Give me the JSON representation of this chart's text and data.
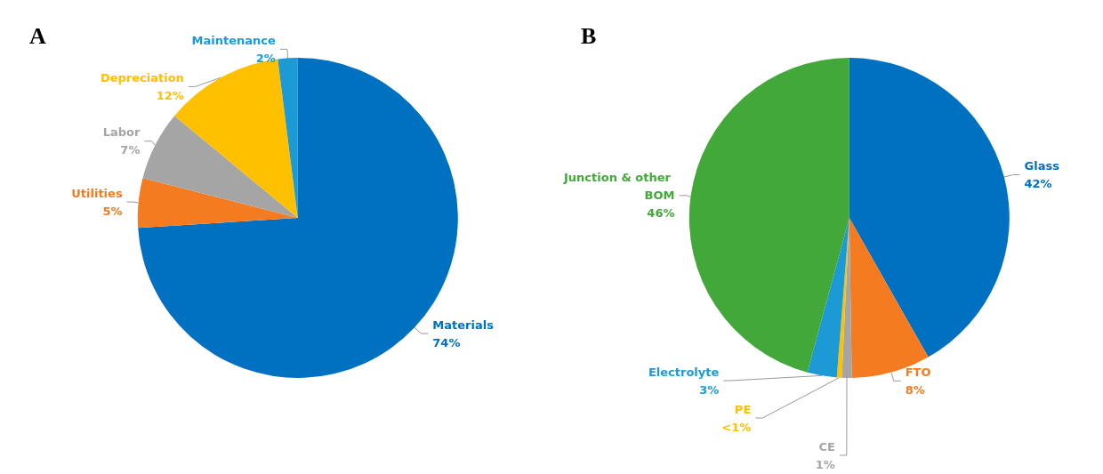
{
  "chart_data": [
    {
      "type": "pie",
      "title": "A",
      "categories": [
        "Materials",
        "Utilities",
        "Labor",
        "Depreciation",
        "Maintenance"
      ],
      "values": [
        74,
        5,
        7,
        12,
        2
      ],
      "colors": [
        "#0070c0",
        "#f47b20",
        "#a5a5a5",
        "#ffc000",
        "#1b9ad6"
      ],
      "value_labels": [
        "74%",
        "5%",
        "7%",
        "12%",
        "2%"
      ]
    },
    {
      "type": "pie",
      "title": "B",
      "categories": [
        "Glass",
        "FTO",
        "CE",
        "PE",
        "Electrolyte",
        "Junction & other BOM"
      ],
      "values": [
        42,
        8,
        1,
        0.5,
        3,
        46
      ],
      "colors": [
        "#0070c0",
        "#f47b20",
        "#a5a5a5",
        "#ffc000",
        "#1b9ad6",
        "#43a83a"
      ],
      "value_labels": [
        "42%",
        "8%",
        "1%",
        "<1%",
        "3%",
        "46%"
      ]
    }
  ]
}
